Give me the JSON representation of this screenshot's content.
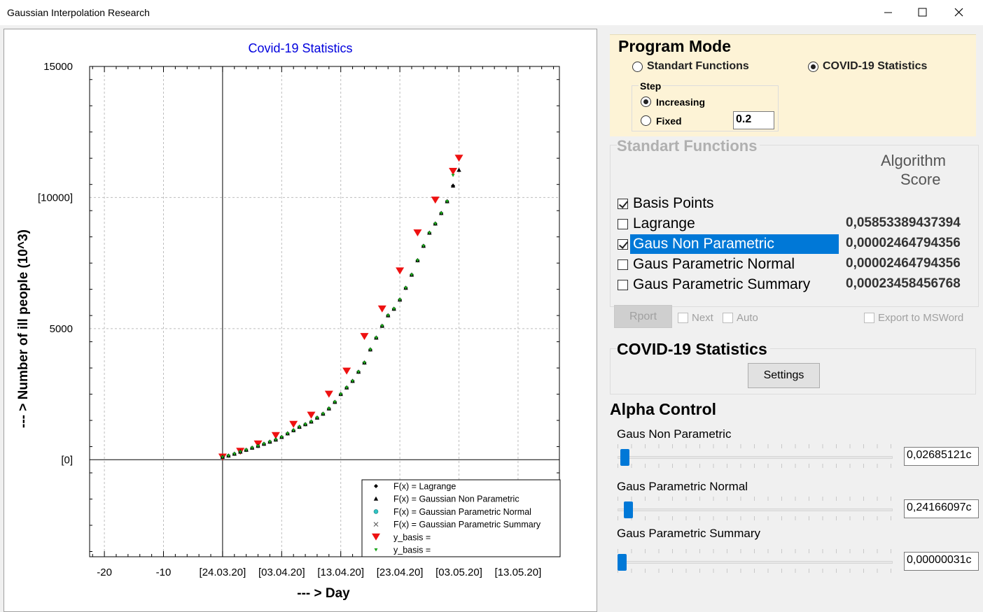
{
  "window": {
    "title": "Gaussian Interpolation Research"
  },
  "chart": {
    "title": "Covid-19 Statistics",
    "xlabel": "--- > Day",
    "ylabel": "--- > Number of ill people (10^3)"
  },
  "chart_data": {
    "type": "scatter",
    "title": "Covid-19 Statistics",
    "xlabel": "--- > Day",
    "ylabel": "--- > Number of ill people (10^3)",
    "xlim": [
      -22.5,
      57
    ],
    "ylim": [
      -3700,
      15000
    ],
    "x_ticks": [
      -20,
      -10,
      0,
      10,
      20,
      30,
      40,
      50
    ],
    "x_tick_labels": [
      "-20",
      "-10",
      "[24.03.20]",
      "[03.04.20]",
      "[13.04.20]",
      "[23.04.20]",
      "[03.05.20]",
      "[13.05.20]"
    ],
    "y_ticks": [
      0,
      5000,
      10000,
      15000
    ],
    "y_tick_labels": [
      "[0]",
      "5000",
      "[10000]",
      "15000"
    ],
    "grid": true,
    "legend_position": "bottom-right",
    "series": [
      {
        "name": "F(x) = Lagrange",
        "marker": "diamond",
        "color": "#000000",
        "x": [
          0,
          1,
          2,
          3,
          4,
          5,
          6,
          7,
          8,
          9,
          10,
          11,
          12,
          13,
          14,
          15,
          16,
          17,
          18,
          19,
          20,
          21,
          22,
          23,
          24,
          25,
          26,
          27,
          28,
          29,
          30,
          31,
          32,
          33,
          34,
          35,
          36,
          37,
          38,
          39
        ],
        "y": [
          100,
          150,
          220,
          300,
          370,
          450,
          520,
          600,
          680,
          760,
          860,
          1000,
          1120,
          1250,
          1350,
          1450,
          1600,
          1750,
          1950,
          2200,
          2500,
          2750,
          3000,
          3350,
          3700,
          4200,
          4650,
          5100,
          5500,
          5750,
          6100,
          6550,
          7050,
          7600,
          8150,
          8650,
          9000,
          9400,
          9850,
          10450
        ]
      },
      {
        "name": "F(x) = Gaussian Non Parametric",
        "marker": "triangle",
        "color": "#000000",
        "x": [
          0,
          1,
          2,
          3,
          4,
          5,
          6,
          7,
          8,
          9,
          10,
          11,
          12,
          13,
          14,
          15,
          16,
          17,
          18,
          19,
          20,
          21,
          22,
          23,
          24,
          25,
          26,
          27,
          28,
          29,
          30,
          31,
          32,
          33,
          34,
          35,
          36,
          37,
          38,
          39,
          40
        ],
        "y": [
          100,
          150,
          220,
          300,
          370,
          450,
          520,
          600,
          680,
          760,
          860,
          1000,
          1120,
          1250,
          1350,
          1450,
          1600,
          1750,
          1950,
          2200,
          2500,
          2750,
          3000,
          3350,
          3700,
          4200,
          4650,
          5100,
          5500,
          5750,
          6100,
          6550,
          7050,
          7600,
          8150,
          8650,
          9000,
          9400,
          9850,
          10450,
          11050
        ]
      },
      {
        "name": "F(x) = Gaussian Parametric Normal",
        "marker": "circle",
        "color": "#2fc4c4",
        "x": [],
        "y": []
      },
      {
        "name": "F(x) = Gaussian Parametric Summary",
        "marker": "cross",
        "color": "#555555",
        "x": [],
        "y": []
      },
      {
        "name": "y_basis =",
        "marker": "triangle-down-large",
        "color": "#ee1111",
        "x": [
          0,
          3,
          6,
          9,
          12,
          15,
          18,
          21,
          24,
          27,
          30,
          33,
          36,
          39,
          40
        ],
        "y": [
          100,
          320,
          600,
          920,
          1350,
          1700,
          2500,
          3380,
          4700,
          5750,
          7200,
          8650,
          9900,
          11000,
          11500
        ]
      },
      {
        "name": "y_basis =",
        "marker": "triangle-down-small",
        "color": "#19a519",
        "x": [
          0,
          1,
          2,
          3,
          4,
          5,
          6,
          7,
          8,
          9,
          10,
          11,
          12,
          13,
          14,
          15,
          16,
          17,
          18,
          19,
          20,
          21,
          22,
          23,
          24,
          25,
          26,
          27,
          28,
          29,
          30,
          31,
          32,
          33,
          34,
          35,
          36,
          37,
          38,
          39
        ],
        "y": [
          100,
          150,
          220,
          300,
          370,
          450,
          520,
          600,
          680,
          760,
          860,
          1000,
          1120,
          1250,
          1350,
          1450,
          1600,
          1750,
          1950,
          2200,
          2500,
          2750,
          3000,
          3350,
          3700,
          4200,
          4650,
          5100,
          5500,
          5750,
          6100,
          6550,
          7050,
          7600,
          8150,
          8650,
          9000,
          9400,
          9850,
          10850
        ]
      }
    ]
  },
  "program_mode": {
    "title": "Program Mode",
    "options": [
      {
        "label": "Standart Functions",
        "checked": false
      },
      {
        "label": "COVID-19 Statistics",
        "checked": true
      }
    ],
    "step": {
      "title": "Step",
      "options": [
        {
          "label": "Increasing",
          "checked": true
        },
        {
          "label": "Fixed",
          "checked": false
        }
      ],
      "value": "0.2"
    }
  },
  "standart_functions": {
    "title": "Standart Functions",
    "score_header": [
      "Algorithm",
      "Score"
    ],
    "items": [
      {
        "label": "Basis Points",
        "checked": true,
        "score": ""
      },
      {
        "label": "Lagrange",
        "checked": false,
        "score": "0,05853389437394"
      },
      {
        "label": "Gaus Non Parametric",
        "checked": true,
        "score": "0,00002464794356"
      },
      {
        "label": "Gaus Parametric Normal",
        "checked": false,
        "score": "0,00002464794356"
      },
      {
        "label": "Gaus Parametric Summary",
        "checked": false,
        "score": "0,00023458456768"
      }
    ],
    "report_button": "Rport",
    "next_label": "Next",
    "auto_label": "Auto",
    "export_label": "Export to MSWord"
  },
  "covid": {
    "title": "COVID-19 Statistics",
    "settings_button": "Settings"
  },
  "alpha_control": {
    "title": "Alpha Control",
    "sliders": [
      {
        "label": "Gaus Non Parametric",
        "value": "0,02685121с",
        "position": 0.01
      },
      {
        "label": "Gaus Parametric Normal",
        "value": "0,24166097с",
        "position": 0.024
      },
      {
        "label": "Gaus Parametric Summary",
        "value": "0,00000031с",
        "position": 0.0
      }
    ]
  },
  "colors": {
    "accent": "#0078d7",
    "selection": "#0078d7",
    "mode_background": "#fdf3d6",
    "title_blue": "#0000dd",
    "marker_red": "#ee1111",
    "marker_green": "#19a519"
  },
  "icons": [
    "minimize-icon",
    "maximize-icon",
    "close-icon"
  ]
}
